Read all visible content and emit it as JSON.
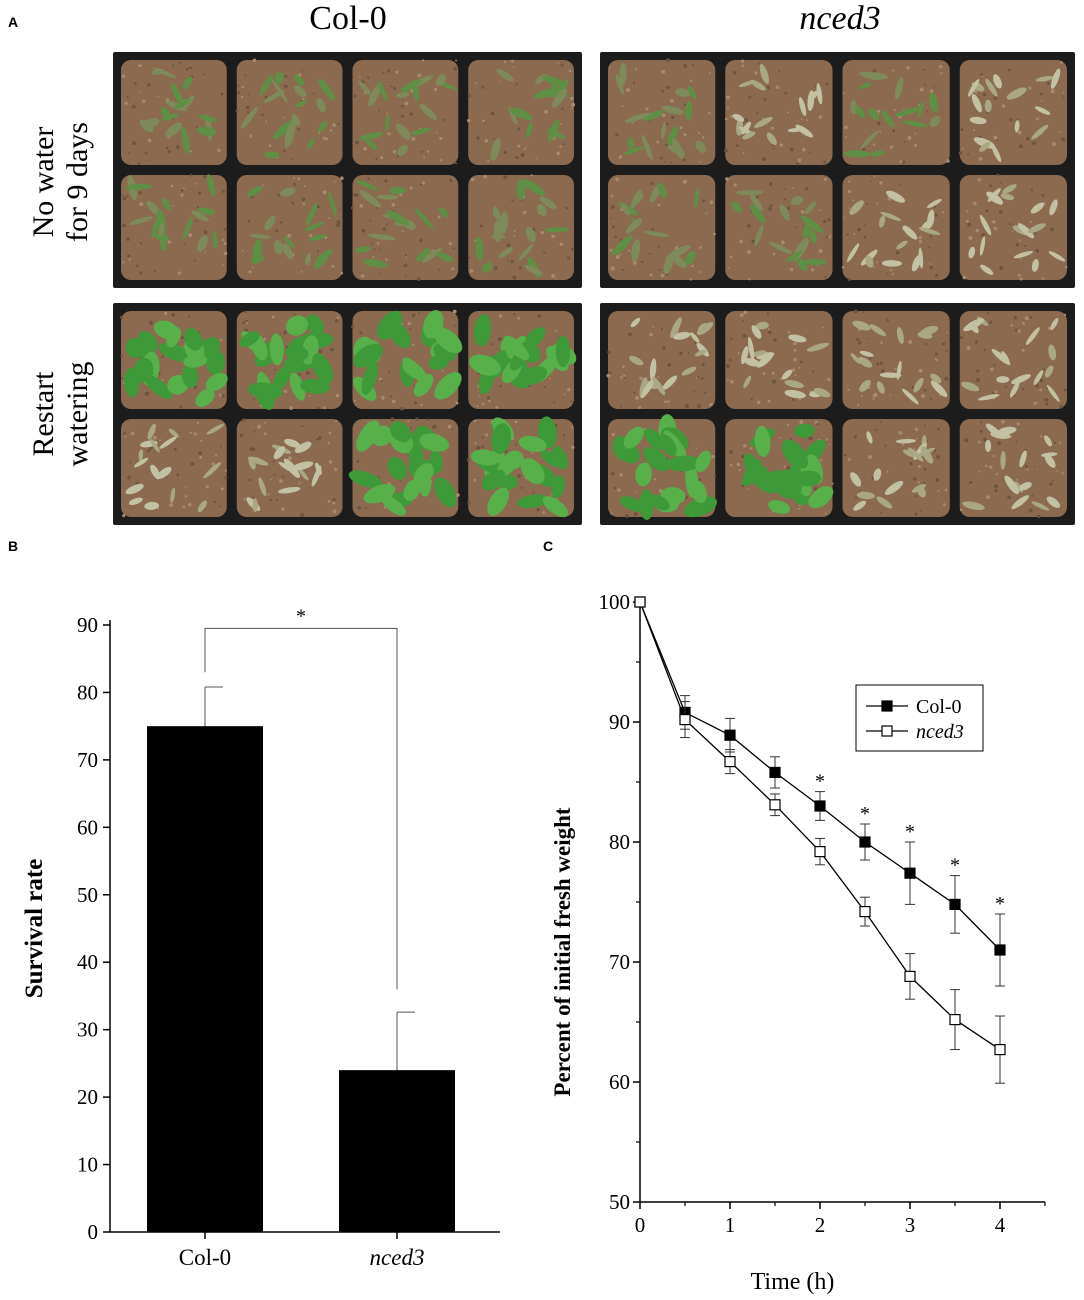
{
  "panel_labels": {
    "a": "A",
    "b": "B",
    "c": "C"
  },
  "photos": {
    "columns": [
      {
        "label": "Col-0",
        "italic": false
      },
      {
        "label": "nced3",
        "italic": true
      }
    ],
    "rows": [
      {
        "line1": "No water",
        "line2": "for 9 days"
      },
      {
        "line1": "Restart",
        "line2": "watering"
      }
    ],
    "colors": {
      "soil": "#8b6a4f",
      "tray": "#1c1c1c",
      "healthy": "#3e9a38",
      "dry": "#a9a784",
      "wilted": "#7e8a5a"
    }
  },
  "chart_data": [
    {
      "type": "bar",
      "panel": "B",
      "categories": [
        "Col-0",
        "nced3"
      ],
      "category_italic": [
        false,
        true
      ],
      "values": [
        75,
        24
      ],
      "errors": [
        5.8,
        8.6
      ],
      "ylabel": "Survival rate",
      "ylim": [
        0,
        90
      ],
      "yticks": [
        0,
        10,
        20,
        30,
        40,
        50,
        60,
        70,
        80,
        90
      ],
      "significance": {
        "label": "*",
        "pair": [
          0,
          1
        ],
        "bracket_y": 89.5
      },
      "bar_color": "#000000"
    },
    {
      "type": "line",
      "panel": "C",
      "xlabel": "Time (h)",
      "ylabel": "Percent of initial fresh weight",
      "xlim": [
        0,
        4.5
      ],
      "ylim": [
        50,
        100
      ],
      "xticks": [
        0,
        1,
        2,
        3,
        4
      ],
      "yticks": [
        50,
        60,
        70,
        80,
        90,
        100
      ],
      "x": [
        0,
        0.5,
        1,
        1.5,
        2,
        2.5,
        3,
        3.5,
        4
      ],
      "series": [
        {
          "name": "Col-0",
          "italic": false,
          "marker": "filled-square",
          "values": [
            100,
            90.8,
            88.9,
            85.8,
            83.0,
            80.0,
            77.4,
            74.8,
            71.0
          ],
          "errors": [
            0,
            1.4,
            1.4,
            1.3,
            1.2,
            1.5,
            2.6,
            2.4,
            3.0
          ]
        },
        {
          "name": "nced3",
          "italic": true,
          "marker": "open-square",
          "values": [
            100,
            90.2,
            86.7,
            83.1,
            79.2,
            74.2,
            68.8,
            65.2,
            62.7
          ],
          "errors": [
            0,
            1.5,
            1.0,
            0.9,
            1.1,
            1.2,
            1.9,
            2.5,
            2.8
          ]
        }
      ],
      "significance": {
        "label": "*",
        "x": [
          2,
          2.5,
          3,
          3.5,
          4
        ]
      },
      "legend_position": "top-right"
    }
  ]
}
